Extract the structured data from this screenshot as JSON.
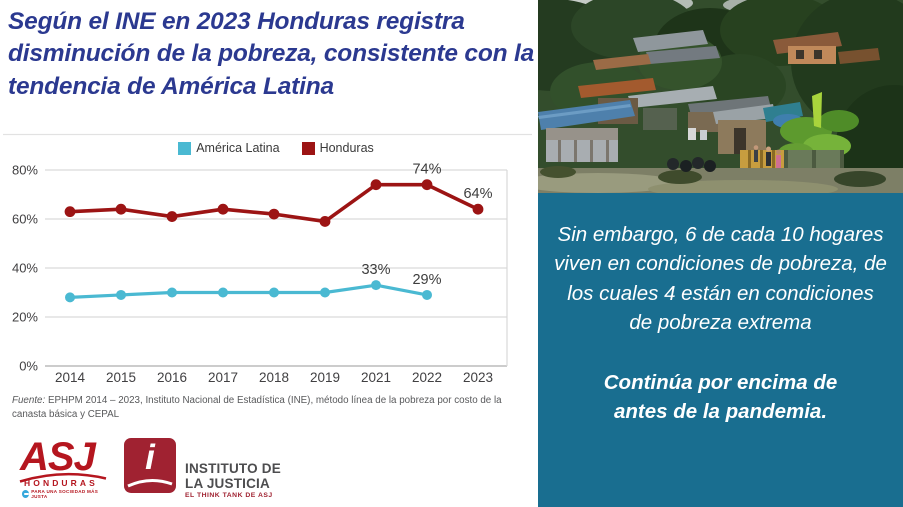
{
  "title": "Según el INE en 2023 Honduras registra disminución de la pobreza, consistente con la tendencia de América Latina",
  "title_color": "#2b3990",
  "chart_data": {
    "type": "line",
    "title": "",
    "xlabel": "",
    "ylabel": "",
    "categories": [
      "2014",
      "2015",
      "2016",
      "2017",
      "2018",
      "2019",
      "2021",
      "2022",
      "2023"
    ],
    "y_ticks": [
      0,
      20,
      40,
      60,
      80
    ],
    "ylim": [
      0,
      85
    ],
    "grid": true,
    "legend_position": "top",
    "series": [
      {
        "name": "América Latina",
        "color": "#4ab9d2",
        "values": [
          28,
          29,
          30,
          30,
          30,
          30,
          33,
          29,
          null
        ]
      },
      {
        "name": "Honduras",
        "color": "#9c1414",
        "values": [
          63,
          64,
          61,
          64,
          62,
          59,
          74,
          74,
          64
        ]
      }
    ],
    "point_labels": [
      {
        "series": "Honduras",
        "year": "2022",
        "value": 74,
        "text": "74%"
      },
      {
        "series": "Honduras",
        "year": "2023",
        "value": 64,
        "text": "64%"
      },
      {
        "series": "América Latina",
        "year": "2021",
        "value": 33,
        "text": "33%"
      },
      {
        "series": "América Latina",
        "year": "2022",
        "value": 29,
        "text": "29%"
      }
    ]
  },
  "source": {
    "label": "Fuente:",
    "text": "EPHPM 2014 – 2023, Instituto Nacional de Estadística (INE), método línea de la pobreza por costo de la canasta básica y CEPAL"
  },
  "logos": {
    "asj": {
      "acronym": "ASJ",
      "country": "HONDURAS",
      "tagline": "PARA UNA SOCIEDAD MÁS JUSTA",
      "color": "#b5161f",
      "globe_color": "#35a8dc"
    },
    "ij": {
      "letter": "i",
      "name_line1": "INSTITUTO DE",
      "name_line2": "LA JUSTICIA",
      "tagline": "EL THINK TANK DE ASJ",
      "color": "#a02231"
    }
  },
  "panel": {
    "background": "#196e90",
    "paragraph1": "Sin embargo, 6 de cada 10 hogares viven en condiciones de pobreza, de los cuales 4 están en condiciones de pobreza extrema",
    "paragraph2": "Continúa por encima de antes de la pandemia."
  },
  "photo": {
    "alt": "Hillside informal settlement with makeshift metal-roof houses among dense trees"
  }
}
